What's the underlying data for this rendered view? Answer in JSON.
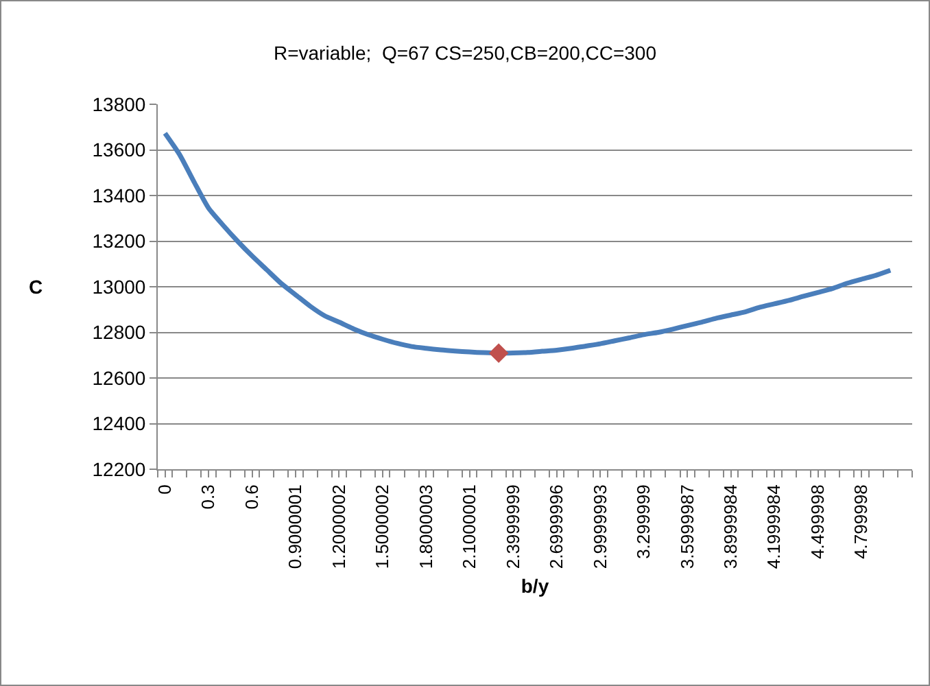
{
  "chart_data": {
    "type": "line",
    "title": "R=variable;  Q=67 CS=250,CB=200,CC=300",
    "xlabel": "b/y",
    "ylabel": "C",
    "categories": [
      "0",
      null,
      null,
      "0.3",
      null,
      null,
      "0.6",
      null,
      null,
      "0.9000001",
      null,
      null,
      "1.2000002",
      null,
      null,
      "1.5000002",
      null,
      null,
      "1.8000003",
      null,
      null,
      "2.1000001",
      null,
      null,
      "2.3999999",
      null,
      null,
      "2.6999996",
      null,
      null,
      "2.9999993",
      null,
      null,
      "3.299999",
      null,
      null,
      "3.5999987",
      null,
      null,
      "3.8999984",
      null,
      null,
      "4.1999984",
      null,
      null,
      "4.499998",
      null,
      null,
      "4.799998",
      null,
      null,
      null
    ],
    "series": [
      {
        "color": "#4a7ebb",
        "marker": "none",
        "values": [
          13673,
          13580,
          13460,
          13345,
          13270,
          13200,
          13135,
          13075,
          13015,
          12965,
          12915,
          12873,
          12845,
          12815,
          12790,
          12770,
          12752,
          12738,
          12730,
          12723,
          12718,
          12714,
          12711,
          12709,
          12710,
          12712,
          12717,
          12722,
          12730,
          12740,
          12750,
          12763,
          12776,
          12790,
          12800,
          12814,
          12830,
          12845,
          12862,
          12876,
          12890,
          12910,
          12925,
          12940,
          12958,
          12975,
          12992,
          13015,
          13033,
          13050,
          13072,
          null
        ]
      },
      {
        "type": "scatter",
        "color": "#c0504d",
        "marker": "diamond",
        "values": [
          null,
          null,
          null,
          null,
          null,
          null,
          null,
          null,
          null,
          null,
          null,
          null,
          null,
          null,
          null,
          null,
          null,
          null,
          null,
          null,
          null,
          null,
          null,
          12709,
          null,
          null,
          null,
          null,
          null,
          null,
          null,
          null,
          null,
          null,
          null,
          null,
          null,
          null,
          null,
          null,
          null,
          null,
          null,
          null,
          null,
          null,
          null,
          null,
          null,
          null,
          null,
          null
        ]
      }
    ],
    "ylim": [
      12200,
      13800
    ],
    "yticks": [
      12200,
      12400,
      12600,
      12800,
      13000,
      13200,
      13400,
      13600,
      13800
    ],
    "grid": "y"
  }
}
